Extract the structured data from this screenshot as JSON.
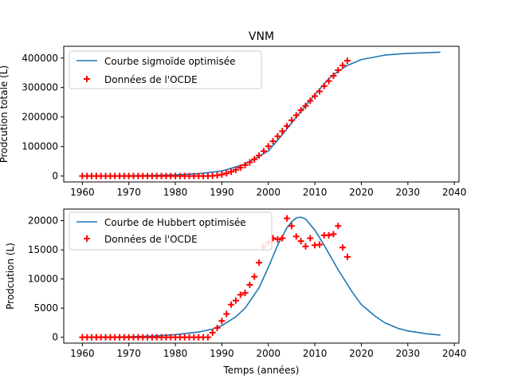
{
  "figure_title": "VNM",
  "chart_data": [
    {
      "type": "line+scatter",
      "title": "VNM",
      "xlabel": "",
      "ylabel": "Prodcution totale (L)",
      "xlim": [
        1956,
        2041
      ],
      "ylim": [
        -20000,
        440000
      ],
      "xticks": [
        1960,
        1970,
        1980,
        1990,
        2000,
        2010,
        2020,
        2030,
        2040
      ],
      "yticks": [
        0,
        100000,
        200000,
        300000,
        400000
      ],
      "legend_position": "upper-left",
      "grid": false,
      "series": [
        {
          "name": "Courbe sigmoïde optimisée",
          "kind": "line",
          "color": "#1f77b4",
          "x": [
            1960,
            1965,
            1970,
            1975,
            1980,
            1985,
            1990,
            1995,
            2000,
            2003,
            2005,
            2007,
            2010,
            2013,
            2015,
            2017,
            2020,
            2025,
            2030,
            2037
          ],
          "y": [
            200,
            500,
            1000,
            2000,
            4000,
            8000,
            17000,
            40000,
            85000,
            140000,
            180000,
            220000,
            275000,
            330000,
            355000,
            375000,
            395000,
            410000,
            416000,
            420000
          ]
        },
        {
          "name": "Données de l'OCDE",
          "kind": "scatter",
          "marker": "+",
          "color": "#ff0000",
          "x": [
            1960,
            1961,
            1962,
            1963,
            1964,
            1965,
            1966,
            1967,
            1968,
            1969,
            1970,
            1971,
            1972,
            1973,
            1974,
            1975,
            1976,
            1977,
            1978,
            1979,
            1980,
            1981,
            1982,
            1983,
            1984,
            1985,
            1986,
            1987,
            1988,
            1989,
            1990,
            1991,
            1992,
            1993,
            1994,
            1995,
            1996,
            1997,
            1998,
            1999,
            2000,
            2001,
            2002,
            2003,
            2004,
            2005,
            2006,
            2007,
            2008,
            2009,
            2010,
            2011,
            2012,
            2013,
            2014,
            2015,
            2016,
            2017
          ],
          "y": [
            0,
            0,
            0,
            0,
            0,
            0,
            0,
            0,
            0,
            0,
            0,
            0,
            0,
            0,
            0,
            0,
            0,
            0,
            0,
            0,
            0,
            0,
            0,
            0,
            0,
            0,
            0,
            0,
            800,
            2400,
            5200,
            9200,
            14800,
            21100,
            28400,
            37000,
            46300,
            56800,
            69500,
            84500,
            101000,
            118000,
            135000,
            152000,
            169500,
            189000,
            206000,
            223000,
            238000,
            255000,
            271000,
            287000,
            305000,
            322000,
            340000,
            359000,
            375000,
            391000
          ]
        }
      ]
    },
    {
      "type": "line+scatter",
      "title": "",
      "xlabel": "Temps (années)",
      "ylabel": "Prodcution (L)",
      "xlim": [
        1956,
        2041
      ],
      "ylim": [
        -1000,
        22000
      ],
      "xticks": [
        1960,
        1970,
        1980,
        1990,
        2000,
        2010,
        2020,
        2030,
        2040
      ],
      "yticks": [
        0,
        5000,
        10000,
        15000,
        20000
      ],
      "legend_position": "upper-left",
      "grid": false,
      "series": [
        {
          "name": "Courbe de Hubbert optimisée",
          "kind": "line",
          "color": "#1f77b4",
          "x": [
            1960,
            1965,
            1970,
            1975,
            1980,
            1985,
            1988,
            1990,
            1993,
            1995,
            1998,
            2000,
            2002,
            2004,
            2005,
            2006,
            2007,
            2008,
            2010,
            2012,
            2015,
            2018,
            2020,
            2023,
            2025,
            2028,
            2030,
            2034,
            2037
          ],
          "y": [
            20,
            40,
            90,
            200,
            450,
            900,
            1400,
            2000,
            3500,
            5000,
            8500,
            12000,
            15800,
            18800,
            19800,
            20500,
            20600,
            20300,
            18400,
            15800,
            11600,
            7800,
            5600,
            3600,
            2500,
            1500,
            1100,
            600,
            380
          ]
        },
        {
          "name": "Données de l'OCDE",
          "kind": "scatter",
          "marker": "+",
          "color": "#ff0000",
          "x": [
            1960,
            1961,
            1962,
            1963,
            1964,
            1965,
            1966,
            1967,
            1968,
            1969,
            1970,
            1971,
            1972,
            1973,
            1974,
            1975,
            1976,
            1977,
            1978,
            1979,
            1980,
            1981,
            1982,
            1983,
            1984,
            1985,
            1986,
            1987,
            1988,
            1989,
            1990,
            1991,
            1992,
            1993,
            1994,
            1995,
            1996,
            1997,
            1998,
            1999,
            2000,
            2001,
            2002,
            2003,
            2004,
            2005,
            2006,
            2007,
            2008,
            2009,
            2010,
            2011,
            2012,
            2013,
            2014,
            2015,
            2016,
            2017
          ],
          "y": [
            0,
            0,
            0,
            0,
            0,
            0,
            0,
            0,
            0,
            0,
            0,
            0,
            0,
            0,
            0,
            0,
            0,
            0,
            0,
            0,
            0,
            0,
            0,
            0,
            0,
            0,
            0,
            0,
            800,
            1600,
            2800,
            4000,
            5600,
            6300,
            7300,
            7600,
            9000,
            10400,
            12800,
            15600,
            16300,
            17000,
            16800,
            17000,
            20400,
            19100,
            17300,
            16500,
            15600,
            17000,
            15800,
            15900,
            17500,
            17500,
            17700,
            19100,
            15400,
            13800
          ]
        }
      ]
    }
  ]
}
